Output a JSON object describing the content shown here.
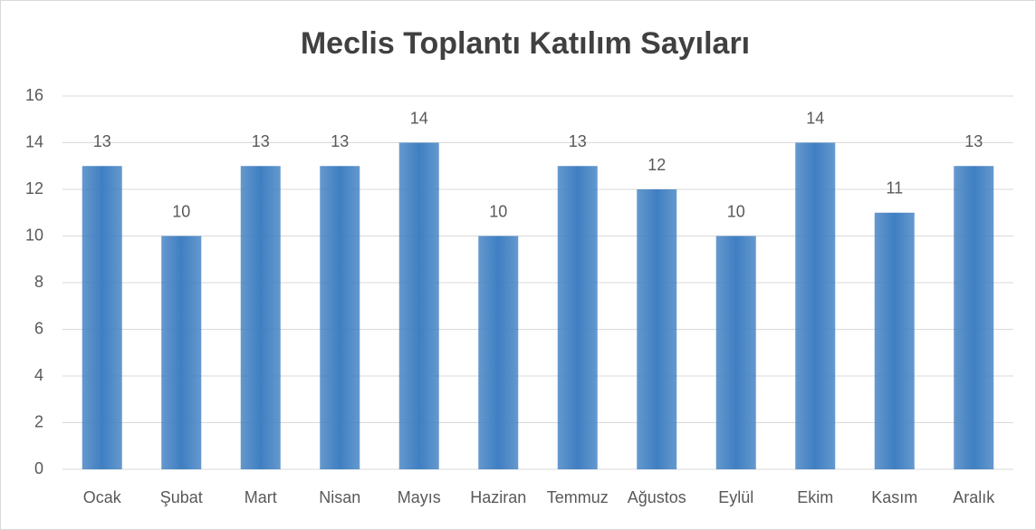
{
  "chart_data": {
    "type": "bar",
    "title": "Meclis Toplantı Katılım Sayıları",
    "categories": [
      "Ocak",
      "Şubat",
      "Mart",
      "Nisan",
      "Mayıs",
      "Haziran",
      "Temmuz",
      "Ağustos",
      "Eylül",
      "Ekim",
      "Kasım",
      "Aralık"
    ],
    "values": [
      13,
      10,
      13,
      13,
      14,
      10,
      13,
      12,
      10,
      14,
      11,
      13
    ],
    "color": "#3f7fc2",
    "ylim": [
      0,
      16
    ],
    "yticks": [
      0,
      2,
      4,
      6,
      8,
      10,
      12,
      14,
      16
    ],
    "grid": true
  }
}
